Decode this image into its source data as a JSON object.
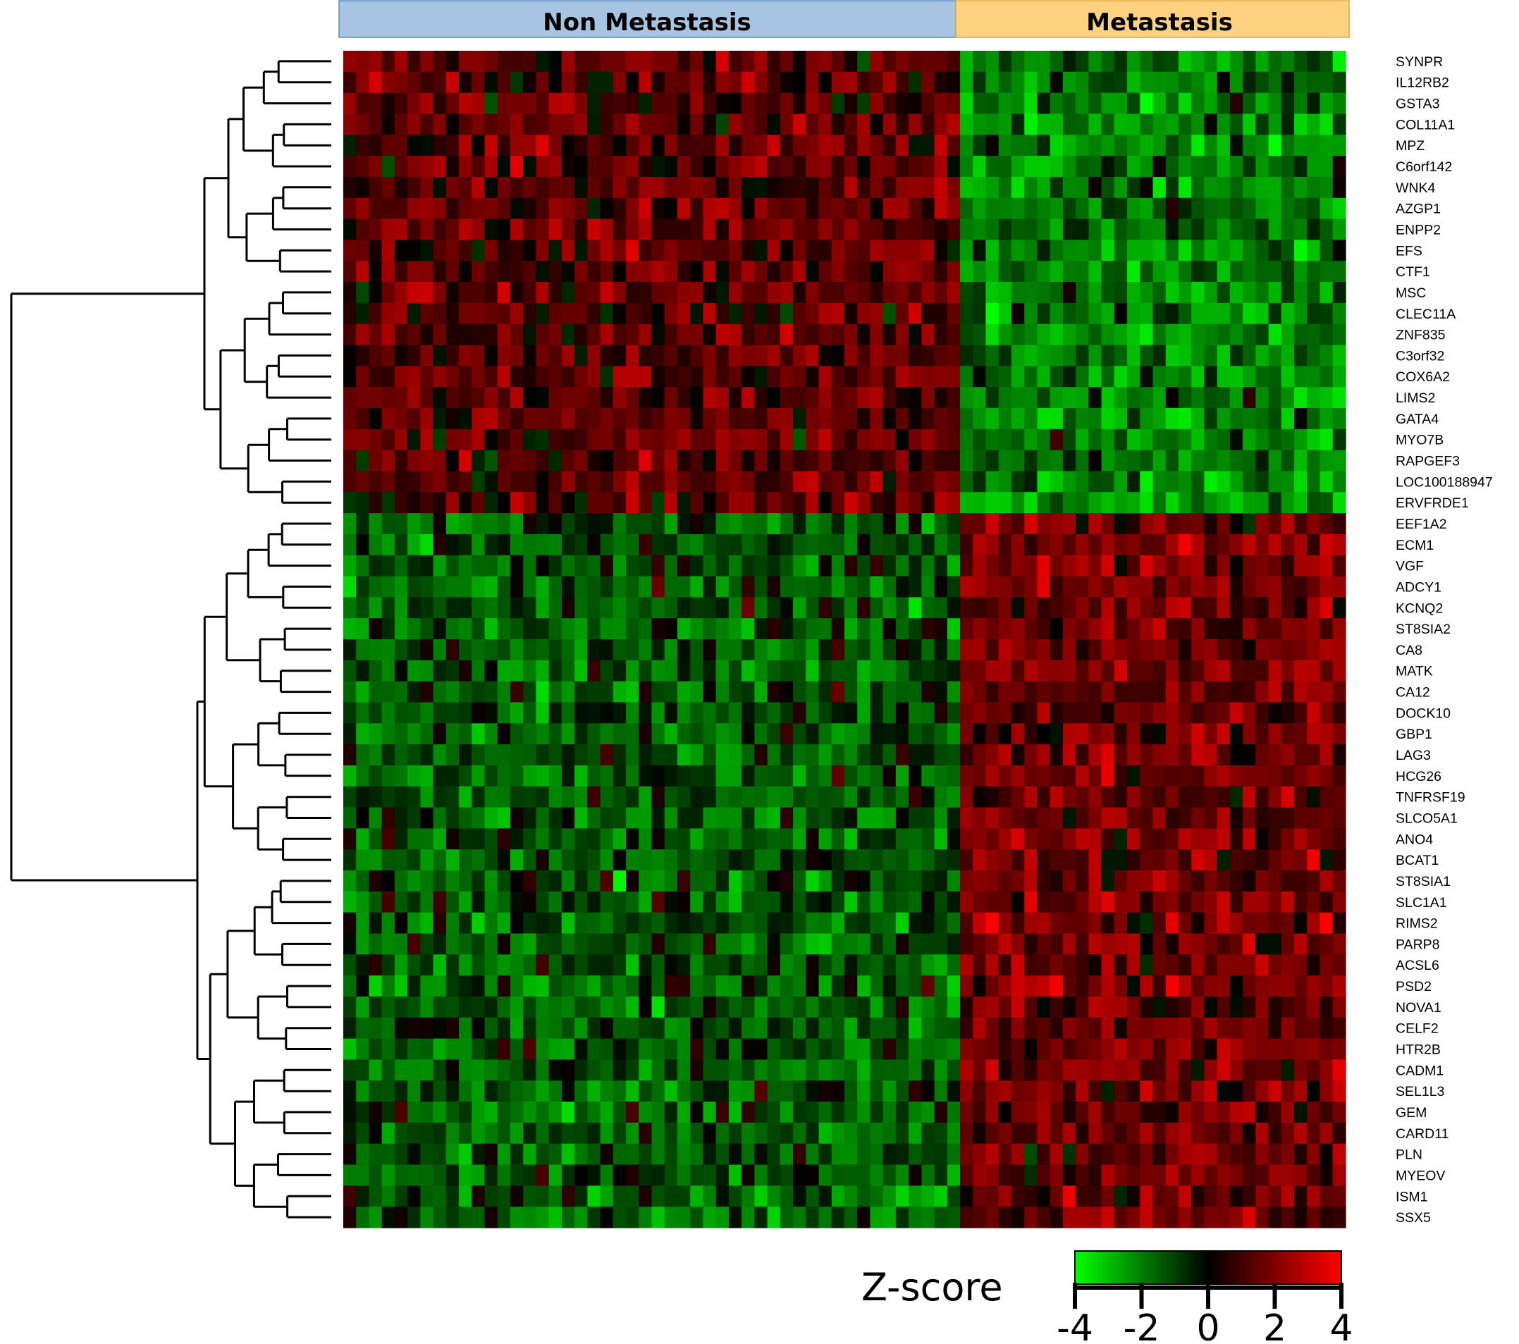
{
  "chart_data": {
    "type": "heatmap",
    "title": "",
    "groups": [
      {
        "name": "Non Metastasis",
        "color": "#a7c4e2",
        "columns": 48
      },
      {
        "name": "Metastasis",
        "color": "#ffd27f",
        "columns": 30
      }
    ],
    "rows": [
      "SYNPR",
      "IL12RB2",
      "GSTA3",
      "COL11A1",
      "MPZ",
      "C6orf142",
      "WNK4",
      "AZGP1",
      "ENPP2",
      "EFS",
      "CTF1",
      "MSC",
      "CLEC11A",
      "ZNF835",
      "C3orf32",
      "COX6A2",
      "LIMS2",
      "GATA4",
      "MYO7B",
      "RAPGEF3",
      "LOC100188947",
      "ERVFRDE1",
      "EEF1A2",
      "ECM1",
      "VGF",
      "ADCY1",
      "KCNQ2",
      "ST8SIA2",
      "CA8",
      "MATK",
      "CA12",
      "DOCK10",
      "GBP1",
      "LAG3",
      "HCG26",
      "TNFRSF19",
      "SLCO5A1",
      "ANO4",
      "BCAT1",
      "ST8SIA1",
      "SLC1A1",
      "RIMS2",
      "PARP8",
      "ACSL6",
      "PSD2",
      "NOVA1",
      "CELF2",
      "HTR2B",
      "CADM1",
      "SEL1L3",
      "GEM",
      "CARD11",
      "PLN",
      "MYEOV",
      "ISM1",
      "SSX5"
    ],
    "row_clusters": [
      {
        "rows": [
          0,
          21
        ],
        "non_metastasis_mean_z": 1.2,
        "metastasis_mean_z": -1.8
      },
      {
        "rows": [
          22,
          55
        ],
        "non_metastasis_mean_z": -1.1,
        "metastasis_mean_z": 1.5
      }
    ],
    "colorbar": {
      "title": "Z-score",
      "ticks": [
        "-4",
        "-2",
        "0",
        "2",
        "4"
      ],
      "range": [
        -4,
        4
      ],
      "low_color": "#00ff00",
      "mid_color": "#000000",
      "high_color": "#ff0000"
    },
    "dendrogram": "row"
  }
}
